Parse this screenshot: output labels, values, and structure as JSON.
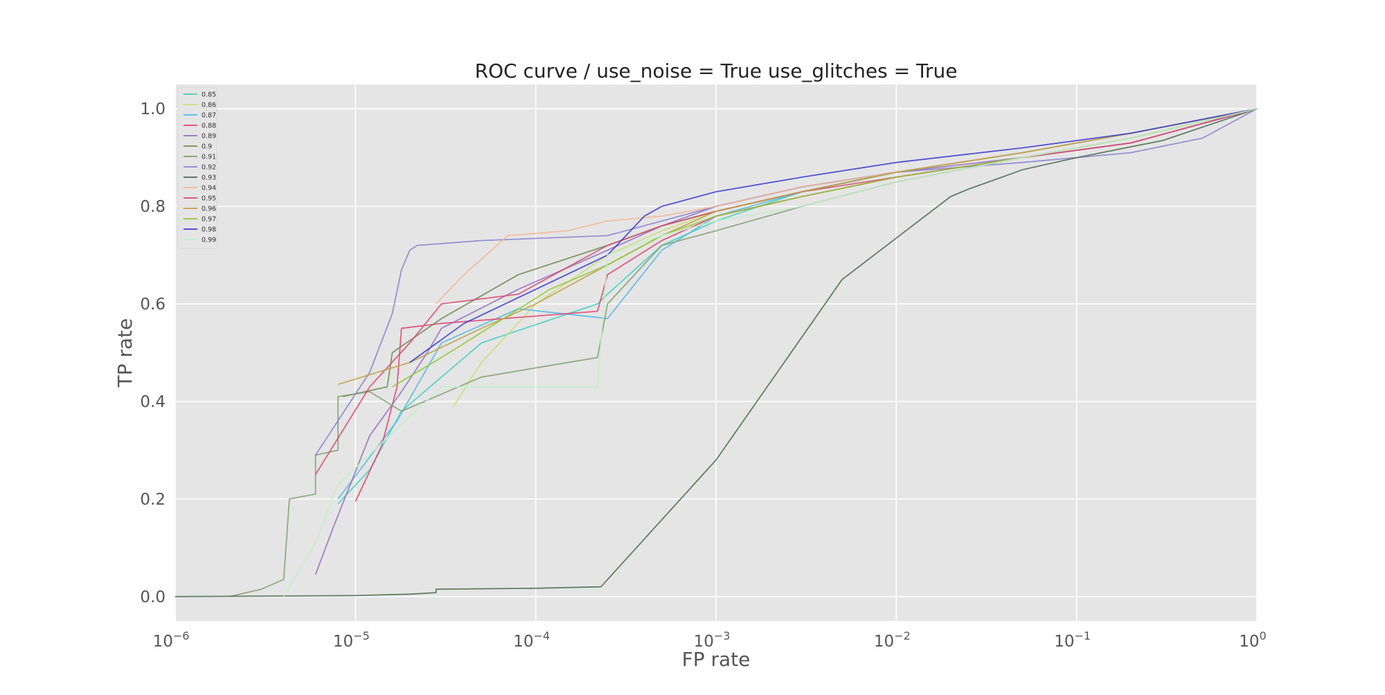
{
  "chart_data": {
    "type": "line",
    "title": "ROC curve / use_noise = True  use_glitches = True",
    "xlabel": "FP rate",
    "ylabel": "TP rate",
    "x_scale": "log",
    "xlim": [
      1e-06,
      1
    ],
    "ylim": [
      -0.05,
      1.05
    ],
    "x_ticks": [
      {
        "value": 1e-06,
        "base": "10",
        "exp": "−6"
      },
      {
        "value": 1e-05,
        "base": "10",
        "exp": "−5"
      },
      {
        "value": 0.0001,
        "base": "10",
        "exp": "−4"
      },
      {
        "value": 0.001,
        "base": "10",
        "exp": "−3"
      },
      {
        "value": 0.01,
        "base": "10",
        "exp": "−2"
      },
      {
        "value": 0.1,
        "base": "10",
        "exp": "−1"
      },
      {
        "value": 1,
        "base": "10",
        "exp": "0"
      }
    ],
    "y_ticks": [
      {
        "value": 0.0,
        "label": "0.0"
      },
      {
        "value": 0.2,
        "label": "0.2"
      },
      {
        "value": 0.4,
        "label": "0.4"
      },
      {
        "value": 0.6,
        "label": "0.6"
      },
      {
        "value": 0.8,
        "label": "0.8"
      },
      {
        "value": 1.0,
        "label": "1.0"
      }
    ],
    "grid": true,
    "legend_position": "top-left",
    "colors": {
      "background": "#e5e5e5",
      "grid": "#ffffff",
      "text": "#555555",
      "title": "#222222"
    },
    "series": [
      {
        "name": "0.85",
        "color": "#40d0c0",
        "points": [
          [
            8e-06,
            0.19
          ],
          [
            1.2e-05,
            0.26
          ],
          [
            1.8e-05,
            0.38
          ],
          [
            5e-05,
            0.52
          ],
          [
            0.00022,
            0.6
          ],
          [
            0.00025,
            0.62
          ],
          [
            0.0005,
            0.72
          ],
          [
            0.001,
            0.77
          ],
          [
            0.003,
            0.83
          ],
          [
            0.01,
            0.87
          ],
          [
            0.05,
            0.91
          ],
          [
            0.2,
            0.95
          ],
          [
            1,
            1
          ]
        ]
      },
      {
        "name": "0.86",
        "color": "#c8e070",
        "points": [
          [
            3.5e-05,
            0.39
          ],
          [
            5e-05,
            0.48
          ],
          [
            0.0001,
            0.6
          ],
          [
            0.00025,
            0.7
          ],
          [
            0.0005,
            0.75
          ],
          [
            0.001,
            0.79
          ],
          [
            0.003,
            0.83
          ],
          [
            0.01,
            0.87
          ],
          [
            0.05,
            0.91
          ],
          [
            0.2,
            0.95
          ],
          [
            1,
            1
          ]
        ]
      },
      {
        "name": "0.87",
        "color": "#50b8e8",
        "points": [
          [
            8e-06,
            0.2
          ],
          [
            1.7e-05,
            0.36
          ],
          [
            3e-05,
            0.52
          ],
          [
            8e-05,
            0.59
          ],
          [
            0.00025,
            0.57
          ],
          [
            0.0005,
            0.71
          ],
          [
            0.001,
            0.78
          ],
          [
            0.003,
            0.83
          ],
          [
            0.01,
            0.87
          ],
          [
            0.05,
            0.91
          ],
          [
            0.2,
            0.95
          ],
          [
            1,
            1
          ]
        ]
      },
      {
        "name": "0.88",
        "color": "#e04070",
        "points": [
          [
            1e-05,
            0.195
          ],
          [
            1.4e-05,
            0.31
          ],
          [
            1.7e-05,
            0.43
          ],
          [
            1.8e-05,
            0.55
          ],
          [
            3e-05,
            0.56
          ],
          [
            0.00022,
            0.585
          ],
          [
            0.00025,
            0.66
          ],
          [
            0.0005,
            0.73
          ],
          [
            0.001,
            0.78
          ],
          [
            0.003,
            0.82
          ],
          [
            0.01,
            0.86
          ],
          [
            0.05,
            0.9
          ],
          [
            0.2,
            0.93
          ],
          [
            1,
            1
          ]
        ]
      },
      {
        "name": "0.89",
        "color": "#9070c0",
        "points": [
          [
            6e-06,
            0.045
          ],
          [
            7.5e-06,
            0.14
          ],
          [
            1.2e-05,
            0.33
          ],
          [
            1.8e-05,
            0.42
          ],
          [
            2.5e-05,
            0.5
          ],
          [
            3e-05,
            0.55
          ],
          [
            8e-05,
            0.63
          ],
          [
            0.00025,
            0.71
          ],
          [
            0.0005,
            0.76
          ],
          [
            0.001,
            0.8
          ],
          [
            0.003,
            0.84
          ],
          [
            0.01,
            0.87
          ],
          [
            0.05,
            0.9
          ],
          [
            0.2,
            0.93
          ],
          [
            1,
            1
          ]
        ]
      },
      {
        "name": "0.9",
        "color": "#708a50",
        "points": [
          [
            8.5e-06,
            0.41
          ],
          [
            1.5e-05,
            0.43
          ],
          [
            1.6e-05,
            0.5
          ],
          [
            3e-05,
            0.57
          ],
          [
            8e-05,
            0.66
          ],
          [
            0.00025,
            0.72
          ],
          [
            0.0005,
            0.76
          ],
          [
            0.001,
            0.79
          ],
          [
            0.003,
            0.83
          ],
          [
            0.01,
            0.87
          ],
          [
            0.05,
            0.91
          ],
          [
            0.2,
            0.95
          ],
          [
            1,
            1
          ]
        ]
      },
      {
        "name": "0.91",
        "color": "#80a070",
        "points": [
          [
            2e-06,
            0.0
          ],
          [
            3e-06,
            0.015
          ],
          [
            4e-06,
            0.035
          ],
          [
            4.3e-06,
            0.2
          ],
          [
            6e-06,
            0.21
          ],
          [
            6e-06,
            0.29
          ],
          [
            8e-06,
            0.3
          ],
          [
            8e-06,
            0.41
          ],
          [
            1.2e-05,
            0.42
          ],
          [
            1.8e-05,
            0.38
          ],
          [
            5e-05,
            0.45
          ],
          [
            0.00022,
            0.49
          ],
          [
            0.00025,
            0.6
          ],
          [
            0.0005,
            0.72
          ],
          [
            0.001,
            0.75
          ],
          [
            0.003,
            0.8
          ],
          [
            0.01,
            0.85
          ],
          [
            0.05,
            0.9
          ],
          [
            0.2,
            0.94
          ],
          [
            1,
            1
          ]
        ]
      },
      {
        "name": "0.92",
        "color": "#8a80d0",
        "points": [
          [
            6e-06,
            0.29
          ],
          [
            1.2e-05,
            0.46
          ],
          [
            1.6e-05,
            0.58
          ],
          [
            1.8e-05,
            0.67
          ],
          [
            2e-05,
            0.71
          ],
          [
            2.2e-05,
            0.72
          ],
          [
            5e-05,
            0.73
          ],
          [
            0.00025,
            0.74
          ],
          [
            0.0005,
            0.77
          ],
          [
            0.001,
            0.8
          ],
          [
            0.003,
            0.84
          ],
          [
            0.01,
            0.87
          ],
          [
            0.05,
            0.89
          ],
          [
            0.2,
            0.91
          ],
          [
            0.5,
            0.94
          ],
          [
            1,
            1
          ]
        ]
      },
      {
        "name": "0.93",
        "color": "#4a6a50",
        "points": [
          [
            1e-06,
            0.0
          ],
          [
            1e-05,
            0.002
          ],
          [
            2e-05,
            0.005
          ],
          [
            2.8e-05,
            0.008
          ],
          [
            2.8e-05,
            0.015
          ],
          [
            0.0001,
            0.017
          ],
          [
            0.00023,
            0.02
          ],
          [
            0.001,
            0.28
          ],
          [
            0.005,
            0.65
          ],
          [
            0.02,
            0.82
          ],
          [
            0.025,
            0.835
          ],
          [
            0.05,
            0.875
          ],
          [
            0.1,
            0.9
          ],
          [
            0.3,
            0.935
          ],
          [
            1,
            1
          ]
        ]
      },
      {
        "name": "0.94",
        "color": "#f0b890",
        "points": [
          [
            2.8e-05,
            0.6
          ],
          [
            4e-05,
            0.66
          ],
          [
            7e-05,
            0.74
          ],
          [
            0.00015,
            0.75
          ],
          [
            0.00025,
            0.77
          ],
          [
            0.0005,
            0.78
          ],
          [
            0.001,
            0.8
          ],
          [
            0.003,
            0.84
          ],
          [
            0.01,
            0.87
          ],
          [
            0.05,
            0.91
          ],
          [
            0.2,
            0.95
          ],
          [
            1,
            1
          ]
        ]
      },
      {
        "name": "0.95",
        "color": "#d84870",
        "points": [
          [
            6e-06,
            0.25
          ],
          [
            1.2e-05,
            0.43
          ],
          [
            2e-05,
            0.52
          ],
          [
            3e-05,
            0.6
          ],
          [
            8e-05,
            0.62
          ],
          [
            0.00025,
            0.72
          ],
          [
            0.0005,
            0.76
          ],
          [
            0.001,
            0.79
          ],
          [
            0.003,
            0.83
          ],
          [
            0.01,
            0.86
          ],
          [
            0.05,
            0.9
          ],
          [
            0.2,
            0.93
          ],
          [
            1,
            1
          ]
        ]
      },
      {
        "name": "0.96",
        "color": "#c0a040",
        "points": [
          [
            8e-06,
            0.435
          ],
          [
            2e-05,
            0.48
          ],
          [
            5e-05,
            0.55
          ],
          [
            0.0001,
            0.6
          ],
          [
            0.00025,
            0.68
          ],
          [
            0.0005,
            0.74
          ],
          [
            0.001,
            0.79
          ],
          [
            0.003,
            0.83
          ],
          [
            0.01,
            0.87
          ],
          [
            0.05,
            0.91
          ],
          [
            0.2,
            0.95
          ],
          [
            1,
            1
          ]
        ]
      },
      {
        "name": "0.97",
        "color": "#90c830",
        "points": [
          [
            1.6e-05,
            0.43
          ],
          [
            3e-05,
            0.49
          ],
          [
            6e-05,
            0.56
          ],
          [
            0.00012,
            0.63
          ],
          [
            0.00025,
            0.68
          ],
          [
            0.0005,
            0.74
          ],
          [
            0.001,
            0.78
          ],
          [
            0.003,
            0.82
          ],
          [
            0.01,
            0.86
          ],
          [
            0.05,
            0.9
          ],
          [
            0.2,
            0.94
          ],
          [
            1,
            1
          ]
        ]
      },
      {
        "name": "0.98",
        "color": "#3838d0",
        "points": [
          [
            2e-05,
            0.48
          ],
          [
            4e-05,
            0.56
          ],
          [
            0.0001,
            0.63
          ],
          [
            0.00025,
            0.7
          ],
          [
            0.0004,
            0.78
          ],
          [
            0.0005,
            0.8
          ],
          [
            0.001,
            0.83
          ],
          [
            0.003,
            0.86
          ],
          [
            0.01,
            0.89
          ],
          [
            0.05,
            0.92
          ],
          [
            0.2,
            0.95
          ],
          [
            1,
            1
          ]
        ]
      },
      {
        "name": "0.99",
        "color": "#c0f0c8",
        "points": [
          [
            4e-06,
            0.0
          ],
          [
            6e-06,
            0.11
          ],
          [
            8e-06,
            0.23
          ],
          [
            3e-05,
            0.43
          ],
          [
            0.00022,
            0.43
          ],
          [
            0.00025,
            0.7
          ],
          [
            0.0005,
            0.74
          ],
          [
            0.001,
            0.77
          ],
          [
            0.003,
            0.8
          ],
          [
            0.01,
            0.85
          ],
          [
            0.05,
            0.9
          ],
          [
            0.2,
            0.94
          ],
          [
            1,
            1
          ]
        ]
      }
    ]
  }
}
